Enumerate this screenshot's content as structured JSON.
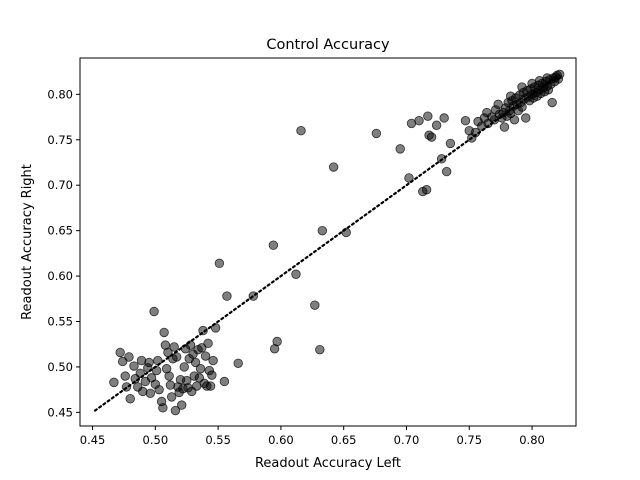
{
  "chart_data": {
    "type": "scatter",
    "title": "Control Accuracy",
    "xlabel": "Readout Accuracy Left",
    "ylabel": "Readout Accuracy Right",
    "xlim": [
      0.44,
      0.835
    ],
    "ylim": [
      0.435,
      0.84
    ],
    "xticks": [
      "0.45",
      "0.50",
      "0.55",
      "0.60",
      "0.65",
      "0.70",
      "0.75",
      "0.80"
    ],
    "yticks": [
      "0.45",
      "0.50",
      "0.55",
      "0.60",
      "0.65",
      "0.70",
      "0.75",
      "0.80"
    ],
    "grid": false,
    "legend": "none",
    "marker_color": "#000000",
    "marker_opacity": 0.5,
    "reference_line": {
      "style": "dotted",
      "from": [
        0.452,
        0.452
      ],
      "to": [
        0.82,
        0.82
      ]
    },
    "points": [
      [
        0.467,
        0.483
      ],
      [
        0.472,
        0.516
      ],
      [
        0.474,
        0.506
      ],
      [
        0.476,
        0.49
      ],
      [
        0.477,
        0.478
      ],
      [
        0.48,
        0.465
      ],
      [
        0.479,
        0.511
      ],
      [
        0.483,
        0.501
      ],
      [
        0.484,
        0.487
      ],
      [
        0.486,
        0.478
      ],
      [
        0.488,
        0.493
      ],
      [
        0.489,
        0.507
      ],
      [
        0.49,
        0.473
      ],
      [
        0.492,
        0.484
      ],
      [
        0.494,
        0.499
      ],
      [
        0.495,
        0.505
      ],
      [
        0.496,
        0.471
      ],
      [
        0.497,
        0.488
      ],
      [
        0.499,
        0.561
      ],
      [
        0.5,
        0.481
      ],
      [
        0.501,
        0.496
      ],
      [
        0.502,
        0.507
      ],
      [
        0.503,
        0.475
      ],
      [
        0.505,
        0.462
      ],
      [
        0.506,
        0.455
      ],
      [
        0.507,
        0.538
      ],
      [
        0.508,
        0.524
      ],
      [
        0.509,
        0.498
      ],
      [
        0.51,
        0.516
      ],
      [
        0.511,
        0.49
      ],
      [
        0.512,
        0.48
      ],
      [
        0.513,
        0.467
      ],
      [
        0.514,
        0.509
      ],
      [
        0.515,
        0.522
      ],
      [
        0.516,
        0.452
      ],
      [
        0.517,
        0.511
      ],
      [
        0.518,
        0.478
      ],
      [
        0.519,
        0.472
      ],
      [
        0.52,
        0.486
      ],
      [
        0.521,
        0.458
      ],
      [
        0.522,
        0.476
      ],
      [
        0.523,
        0.5
      ],
      [
        0.524,
        0.52
      ],
      [
        0.525,
        0.485
      ],
      [
        0.526,
        0.477
      ],
      [
        0.527,
        0.509
      ],
      [
        0.528,
        0.524
      ],
      [
        0.529,
        0.473
      ],
      [
        0.53,
        0.514
      ],
      [
        0.531,
        0.49
      ],
      [
        0.532,
        0.505
      ],
      [
        0.533,
        0.479
      ],
      [
        0.534,
        0.519
      ],
      [
        0.535,
        0.488
      ],
      [
        0.536,
        0.498
      ],
      [
        0.537,
        0.521
      ],
      [
        0.538,
        0.54
      ],
      [
        0.539,
        0.482
      ],
      [
        0.54,
        0.512
      ],
      [
        0.541,
        0.479
      ],
      [
        0.542,
        0.526
      ],
      [
        0.543,
        0.496
      ],
      [
        0.544,
        0.479
      ],
      [
        0.545,
        0.491
      ],
      [
        0.546,
        0.507
      ],
      [
        0.548,
        0.543
      ],
      [
        0.551,
        0.614
      ],
      [
        0.555,
        0.484
      ],
      [
        0.557,
        0.578
      ],
      [
        0.566,
        0.504
      ],
      [
        0.578,
        0.578
      ],
      [
        0.594,
        0.634
      ],
      [
        0.595,
        0.52
      ],
      [
        0.597,
        0.528
      ],
      [
        0.612,
        0.602
      ],
      [
        0.616,
        0.76
      ],
      [
        0.627,
        0.568
      ],
      [
        0.631,
        0.519
      ],
      [
        0.633,
        0.65
      ],
      [
        0.642,
        0.72
      ],
      [
        0.652,
        0.648
      ],
      [
        0.676,
        0.757
      ],
      [
        0.695,
        0.74
      ],
      [
        0.702,
        0.708
      ],
      [
        0.704,
        0.768
      ],
      [
        0.71,
        0.771
      ],
      [
        0.713,
        0.693
      ],
      [
        0.716,
        0.695
      ],
      [
        0.717,
        0.776
      ],
      [
        0.718,
        0.755
      ],
      [
        0.72,
        0.753
      ],
      [
        0.724,
        0.766
      ],
      [
        0.728,
        0.729
      ],
      [
        0.73,
        0.774
      ],
      [
        0.732,
        0.715
      ],
      [
        0.735,
        0.746
      ],
      [
        0.747,
        0.771
      ],
      [
        0.75,
        0.76
      ],
      [
        0.752,
        0.752
      ],
      [
        0.755,
        0.758
      ],
      [
        0.757,
        0.77
      ],
      [
        0.76,
        0.765
      ],
      [
        0.762,
        0.774
      ],
      [
        0.764,
        0.78
      ],
      [
        0.765,
        0.768
      ],
      [
        0.768,
        0.775
      ],
      [
        0.77,
        0.772
      ],
      [
        0.771,
        0.783
      ],
      [
        0.773,
        0.789
      ],
      [
        0.774,
        0.778
      ],
      [
        0.776,
        0.774
      ],
      [
        0.777,
        0.78
      ],
      [
        0.778,
        0.764
      ],
      [
        0.779,
        0.785
      ],
      [
        0.78,
        0.776
      ],
      [
        0.781,
        0.791
      ],
      [
        0.782,
        0.782
      ],
      [
        0.783,
        0.779
      ],
      [
        0.784,
        0.793
      ],
      [
        0.785,
        0.787
      ],
      [
        0.786,
        0.772
      ],
      [
        0.787,
        0.796
      ],
      [
        0.788,
        0.789
      ],
      [
        0.789,
        0.782
      ],
      [
        0.79,
        0.799
      ],
      [
        0.791,
        0.791
      ],
      [
        0.792,
        0.786
      ],
      [
        0.793,
        0.802
      ],
      [
        0.794,
        0.795
      ],
      [
        0.795,
        0.774
      ],
      [
        0.796,
        0.804
      ],
      [
        0.797,
        0.797
      ],
      [
        0.798,
        0.793
      ],
      [
        0.799,
        0.806
      ],
      [
        0.8,
        0.8
      ],
      [
        0.801,
        0.796
      ],
      [
        0.802,
        0.808
      ],
      [
        0.803,
        0.802
      ],
      [
        0.804,
        0.798
      ],
      [
        0.805,
        0.81
      ],
      [
        0.806,
        0.805
      ],
      [
        0.807,
        0.801
      ],
      [
        0.808,
        0.812
      ],
      [
        0.809,
        0.807
      ],
      [
        0.81,
        0.803
      ],
      [
        0.811,
        0.814
      ],
      [
        0.812,
        0.809
      ],
      [
        0.813,
        0.805
      ],
      [
        0.814,
        0.816
      ],
      [
        0.815,
        0.811
      ],
      [
        0.816,
        0.791
      ],
      [
        0.817,
        0.818
      ],
      [
        0.818,
        0.814
      ],
      [
        0.819,
        0.819
      ],
      [
        0.82,
        0.821
      ],
      [
        0.821,
        0.817
      ],
      [
        0.822,
        0.822
      ],
      [
        0.783,
        0.798
      ],
      [
        0.792,
        0.808
      ],
      [
        0.8,
        0.812
      ],
      [
        0.806,
        0.815
      ],
      [
        0.812,
        0.818
      ]
    ]
  }
}
